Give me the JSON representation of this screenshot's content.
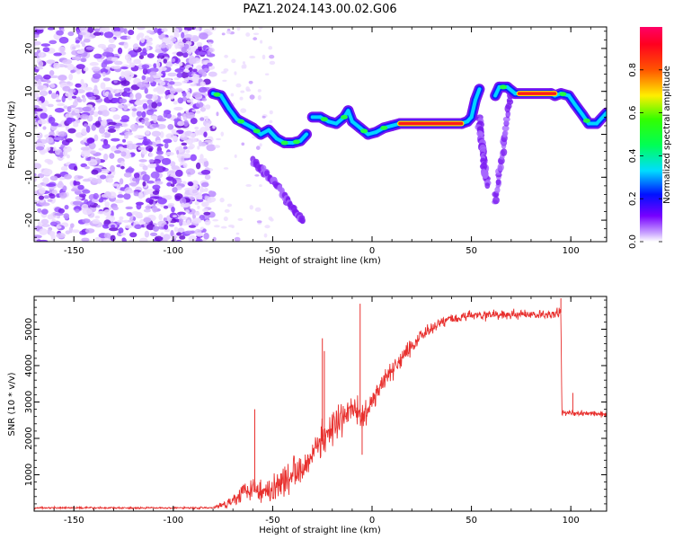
{
  "figure_title": "PAZ1.2024.143.00.02.G06",
  "chart_data": [
    {
      "type": "heatmap",
      "xlabel": "Height of straight line (km)",
      "ylabel": "Frequency (Hz)",
      "xlim": [
        -170,
        118
      ],
      "ylim": [
        -25,
        25
      ],
      "xticks": [
        -150,
        -100,
        -50,
        0,
        50,
        100
      ],
      "yticks": [
        -20,
        -10,
        0,
        10,
        20
      ],
      "colorbar": {
        "label": "Normalized spectral amplitude",
        "range": [
          0,
          1
        ],
        "ticks": [
          "0.0",
          "0.2",
          "0.4",
          "0.6",
          "0.8"
        ],
        "colormap": "gist_rainbow (white at low amplitude)"
      },
      "noise_region_x": [
        -170,
        -80
      ],
      "noise_scatter_x": [
        -100,
        -50
      ],
      "ridge": [
        {
          "x": -80,
          "y": 9.5
        },
        {
          "x": -76,
          "y": 9
        },
        {
          "x": -72,
          "y": 6
        },
        {
          "x": -68,
          "y": 3.5
        },
        {
          "x": -64,
          "y": 2.5
        },
        {
          "x": -60,
          "y": 1.5
        },
        {
          "x": -56,
          "y": 0
        },
        {
          "x": -52,
          "y": 1
        },
        {
          "x": -48,
          "y": -1
        },
        {
          "x": -44,
          "y": -2
        },
        {
          "x": -40,
          "y": -2
        },
        {
          "x": -36,
          "y": -1.5
        },
        {
          "x": -33,
          "y": 0
        },
        {
          "x": -30,
          "y": 4
        },
        {
          "x": -26,
          "y": 4
        },
        {
          "x": -22,
          "y": 3
        },
        {
          "x": -18,
          "y": 2.5
        },
        {
          "x": -14,
          "y": 4
        },
        {
          "x": -12,
          "y": 5.5
        },
        {
          "x": -10,
          "y": 3
        },
        {
          "x": -6,
          "y": 1.5
        },
        {
          "x": -2,
          "y": 0
        },
        {
          "x": 2,
          "y": 0.5
        },
        {
          "x": 6,
          "y": 1.5
        },
        {
          "x": 10,
          "y": 2
        },
        {
          "x": 14,
          "y": 2.5
        },
        {
          "x": 45,
          "y": 2.5
        },
        {
          "x": 48,
          "y": 3
        },
        {
          "x": 50,
          "y": 4
        },
        {
          "x": 52,
          "y": 8
        },
        {
          "x": 54,
          "y": 10.5
        },
        {
          "x": 62,
          "y": 9
        },
        {
          "x": 64,
          "y": 11
        },
        {
          "x": 68,
          "y": 11
        },
        {
          "x": 72,
          "y": 9.5
        },
        {
          "x": 90,
          "y": 9.5
        },
        {
          "x": 92,
          "y": 9
        },
        {
          "x": 95,
          "y": 9.5
        },
        {
          "x": 99,
          "y": 9
        },
        {
          "x": 102,
          "y": 7
        },
        {
          "x": 106,
          "y": 4.5
        },
        {
          "x": 109,
          "y": 2.5
        },
        {
          "x": 113,
          "y": 2.5
        },
        {
          "x": 118,
          "y": 5
        }
      ],
      "hot_segments": [
        {
          "x": [
            14,
            45
          ],
          "y": 2.5
        },
        {
          "x": [
            74,
            92
          ],
          "y": 9.5
        }
      ],
      "weak_branches": [
        {
          "x": [
            -60,
            -45
          ],
          "y": [
            -6,
            -13
          ]
        },
        {
          "x": [
            -45,
            -35
          ],
          "y": [
            -14,
            -20
          ]
        },
        {
          "x": [
            54,
            58
          ],
          "y": [
            4,
            -12
          ]
        },
        {
          "x": [
            54,
            57
          ],
          "y": [
            2,
            -10
          ]
        },
        {
          "x": [
            62,
            70
          ],
          "y": [
            -16,
            10
          ]
        }
      ]
    },
    {
      "type": "line",
      "xlabel": "Height of straight line (km)",
      "ylabel": "SNR (10 * v/v)",
      "xlim": [
        -170,
        118
      ],
      "ylim": [
        0,
        5900
      ],
      "xticks": [
        -150,
        -100,
        -50,
        0,
        50,
        100
      ],
      "yticks": [
        1000,
        2000,
        3000,
        4000,
        5000
      ],
      "color": "#e8302e",
      "envelope": [
        {
          "x": -170,
          "y": 90
        },
        {
          "x": -80,
          "y": 90
        },
        {
          "x": -75,
          "y": 180
        },
        {
          "x": -70,
          "y": 300
        },
        {
          "x": -65,
          "y": 550
        },
        {
          "x": -60,
          "y": 700
        },
        {
          "x": -55,
          "y": 500
        },
        {
          "x": -50,
          "y": 600
        },
        {
          "x": -45,
          "y": 850
        },
        {
          "x": -40,
          "y": 1050
        },
        {
          "x": -35,
          "y": 1250
        },
        {
          "x": -30,
          "y": 1600
        },
        {
          "x": -25,
          "y": 2000
        },
        {
          "x": -20,
          "y": 2200
        },
        {
          "x": -15,
          "y": 2500
        },
        {
          "x": -10,
          "y": 2900
        },
        {
          "x": -5,
          "y": 2500
        },
        {
          "x": 0,
          "y": 3000
        },
        {
          "x": 5,
          "y": 3500
        },
        {
          "x": 10,
          "y": 3850
        },
        {
          "x": 15,
          "y": 4200
        },
        {
          "x": 20,
          "y": 4550
        },
        {
          "x": 25,
          "y": 4850
        },
        {
          "x": 30,
          "y": 5050
        },
        {
          "x": 35,
          "y": 5200
        },
        {
          "x": 40,
          "y": 5300
        },
        {
          "x": 50,
          "y": 5380
        },
        {
          "x": 70,
          "y": 5400
        },
        {
          "x": 90,
          "y": 5400
        },
        {
          "x": 95,
          "y": 5450
        },
        {
          "x": 95.5,
          "y": 2700
        },
        {
          "x": 105,
          "y": 2700
        },
        {
          "x": 118,
          "y": 2650
        }
      ],
      "noise_amplitude": [
        {
          "x": -170,
          "y": 40
        },
        {
          "x": -80,
          "y": 40
        },
        {
          "x": -70,
          "y": 250
        },
        {
          "x": -60,
          "y": 500
        },
        {
          "x": -40,
          "y": 650
        },
        {
          "x": -20,
          "y": 700
        },
        {
          "x": 0,
          "y": 500
        },
        {
          "x": 20,
          "y": 350
        },
        {
          "x": 40,
          "y": 200
        },
        {
          "x": 90,
          "y": 180
        },
        {
          "x": 95,
          "y": 250
        },
        {
          "x": 96,
          "y": 120
        },
        {
          "x": 118,
          "y": 100
        }
      ],
      "spikes": [
        {
          "x": -59,
          "y": 2800
        },
        {
          "x": -25,
          "y": 4750
        },
        {
          "x": -24,
          "y": 4400
        },
        {
          "x": -6,
          "y": 5700
        },
        {
          "x": -5,
          "y": 1550
        },
        {
          "x": 95,
          "y": 5850
        },
        {
          "x": 101,
          "y": 3250
        }
      ]
    }
  ]
}
